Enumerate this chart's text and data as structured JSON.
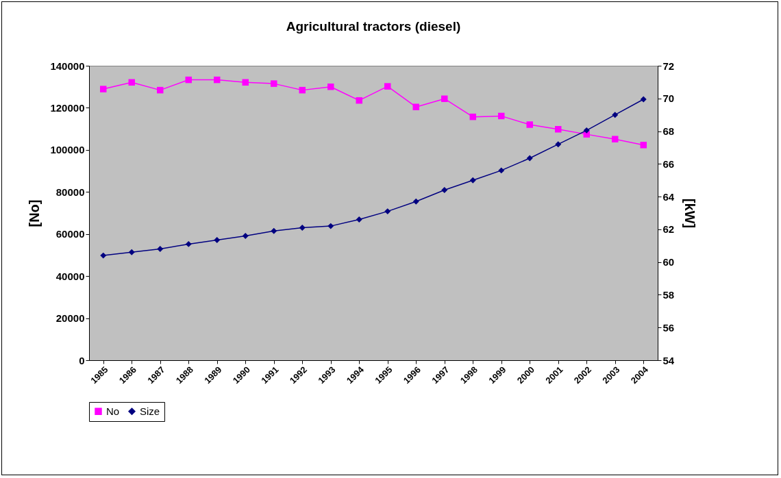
{
  "chart_data": {
    "type": "line",
    "title": "Agricultural tractors (diesel)",
    "ylabel": "[No]",
    "y2label": "[kW]",
    "categories": [
      "1985",
      "1986",
      "1987",
      "1988",
      "1989",
      "1990",
      "1991",
      "1992",
      "1993",
      "1994",
      "1995",
      "1996",
      "1997",
      "1998",
      "1999",
      "2000",
      "2001",
      "2002",
      "2003",
      "2004"
    ],
    "series": [
      {
        "name": "No",
        "color": "#ff00ff",
        "marker": "square",
        "values": [
          128900,
          132100,
          128400,
          133300,
          133300,
          132100,
          131500,
          128400,
          130000,
          123500,
          130200,
          120400,
          124300,
          115700,
          116100,
          112000,
          109800,
          107400,
          105100,
          102300
        ]
      },
      {
        "name": "Size",
        "color": "#000080",
        "marker": "diamond",
        "axis": "y2",
        "values": [
          60.4,
          60.6,
          60.8,
          61.1,
          61.35,
          61.6,
          61.9,
          62.1,
          62.2,
          62.6,
          63.1,
          63.7,
          64.4,
          65.0,
          65.6,
          66.35,
          67.2,
          68.05,
          69.0,
          69.95
        ]
      }
    ],
    "ylim": [
      0,
      140000
    ],
    "yticks": [
      0,
      20000,
      40000,
      60000,
      80000,
      100000,
      120000,
      140000
    ],
    "y2lim": [
      54,
      72
    ],
    "y2ticks": [
      54,
      56,
      58,
      60,
      62,
      64,
      66,
      68,
      70,
      72
    ],
    "legend": "bottom"
  }
}
